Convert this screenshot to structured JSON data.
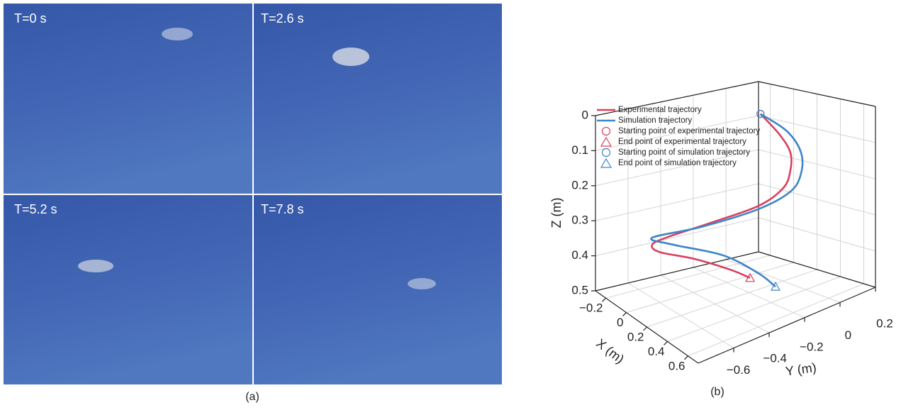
{
  "figure": {
    "panel_a": {
      "frames": [
        "T=0 s",
        "T=2.6 s",
        "T=5.2 s",
        "T=7.8 s"
      ],
      "caption": "(a)"
    },
    "panel_b": {
      "caption": "(b)"
    }
  },
  "chart_data": {
    "type": "line3d",
    "xlabel": "X (m)",
    "ylabel": "Y (m)",
    "zlabel": "Z (m)",
    "xlim": [
      -0.3,
      0.7
    ],
    "xticks": [
      {
        "value": -0.2,
        "label": "−0.2"
      },
      0,
      0.2,
      0.4,
      0.6
    ],
    "ylim": [
      -0.8,
      0.2
    ],
    "yticks": [
      {
        "value": -0.6,
        "label": "−0.6"
      },
      {
        "value": -0.4,
        "label": "−0.4"
      },
      {
        "value": -0.2,
        "label": "−0.2"
      },
      0,
      0.2
    ],
    "zlim": [
      0.5,
      0
    ],
    "zticks": [
      0,
      0.1,
      0.2,
      0.3,
      0.4,
      0.5
    ],
    "grid": true,
    "legend": "upper left",
    "series": [
      {
        "name": "Experimental trajectory",
        "color": "#d9405e",
        "start_label": "Starting point of experimental trajectory",
        "end_label": "End point of experimental trajectory",
        "x": [
          0.25,
          0.25,
          0.25,
          0.25,
          0.25,
          0.25,
          0.25,
          0.25,
          0.25,
          0.25,
          0.25,
          0.25,
          0.25
        ],
        "y": [
          -0.165,
          -0.052,
          0.01,
          0.01,
          -0.031,
          -0.177,
          -0.467,
          -0.716,
          -0.799,
          -0.757,
          -0.55,
          -0.343,
          -0.226
        ],
        "z": [
          0,
          0.075,
          0.134,
          0.184,
          0.227,
          0.255,
          0.259,
          0.26,
          0.267,
          0.293,
          0.344,
          0.406,
          0.448
        ]
      },
      {
        "name": "Simulation trajectory",
        "color": "#3d86c8",
        "start_label": "Starting point of simulation trajectory",
        "end_label": "End point of simulation trajectory",
        "x": [
          0.25,
          0.25,
          0.25,
          0.25,
          0.25,
          0.25,
          0.25,
          0.25,
          0.25,
          0.25,
          0.25,
          0.25
        ],
        "y": [
          -0.165,
          -0.01,
          0.072,
          0.072,
          0.01,
          -0.177,
          -0.509,
          -0.8,
          -0.674,
          -0.384,
          -0.177,
          -0.077
        ],
        "z": [
          0,
          0.071,
          0.143,
          0.203,
          0.244,
          0.264,
          0.262,
          0.248,
          0.286,
          0.36,
          0.443,
          0.497
        ]
      }
    ]
  }
}
